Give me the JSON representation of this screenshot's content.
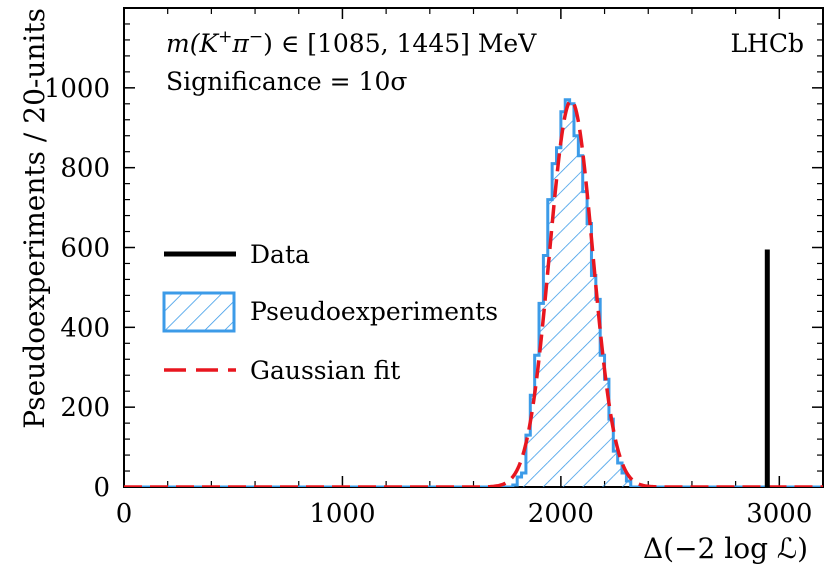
{
  "chart_data": {
    "type": "histogram",
    "title": "",
    "xlabel": "Δ(−2 log ℒ)",
    "ylabel": "Pseudoexperiments / 20-units",
    "xlim": [
      0,
      3200
    ],
    "ylim": [
      0,
      1200
    ],
    "xticks": [
      0,
      1000,
      2000,
      3000
    ],
    "xtick_labels": [
      "0",
      "1000",
      "2000",
      "3000"
    ],
    "yticks": [
      0,
      200,
      400,
      600,
      800,
      1000
    ],
    "ytick_labels": [
      "0",
      "200",
      "400",
      "600",
      "800",
      "1000"
    ],
    "bin_width": 20,
    "pseudoexperiments": {
      "name": "Pseudoexperiments",
      "color": "#3c9be8",
      "bins_start": [
        1780,
        1800,
        1820,
        1840,
        1860,
        1880,
        1900,
        1920,
        1940,
        1960,
        1980,
        2000,
        2020,
        2040,
        2060,
        2080,
        2100,
        2120,
        2140,
        2160,
        2180,
        2200,
        2220,
        2240,
        2260,
        2280,
        2300,
        2320
      ],
      "counts": [
        5,
        25,
        35,
        130,
        230,
        330,
        460,
        580,
        720,
        810,
        850,
        940,
        970,
        960,
        880,
        830,
        740,
        660,
        530,
        470,
        330,
        270,
        170,
        90,
        60,
        35,
        15,
        0
      ]
    },
    "gaussian_fit": {
      "name": "Gaussian fit",
      "color": "#e8161f",
      "amplitude": 968,
      "mean": 2047,
      "sigma": 99
    },
    "data": {
      "name": "Data",
      "color": "#000000",
      "x": 2945,
      "height": 595
    },
    "annotations": {
      "mass_range_prefix": "m(K",
      "mass_range_sup1": "+",
      "mass_range_pi": "π",
      "mass_range_sup2": "−",
      "mass_range_suffix": ") ∈ [1085, 1445] MeV",
      "significance": "Significance = 10σ",
      "experiment": "LHCb"
    },
    "legend": {
      "position": "center-left",
      "entries": [
        "Data",
        "Pseudoexperiments",
        "Gaussian fit"
      ]
    }
  }
}
